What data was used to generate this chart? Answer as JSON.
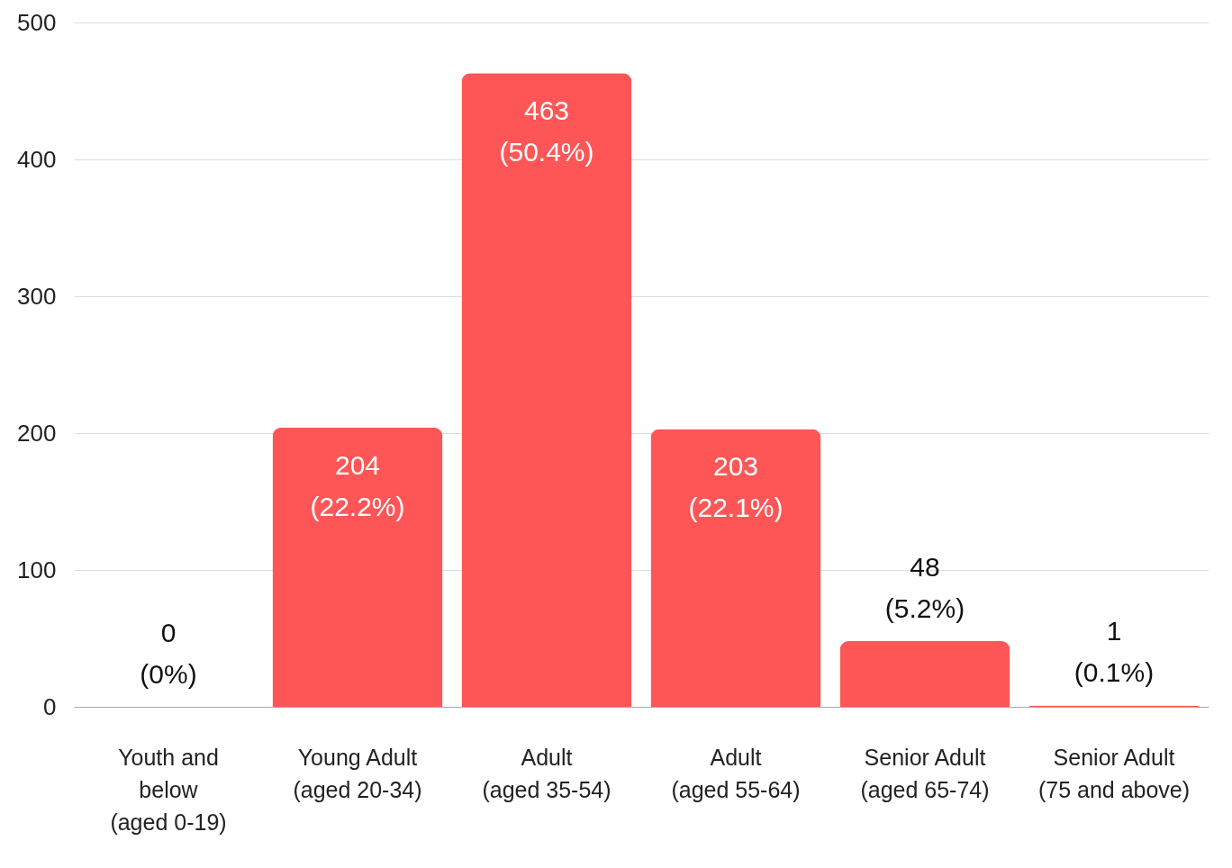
{
  "chart_data": {
    "type": "bar",
    "categories": [
      "Youth and\nbelow\n(aged 0-19)",
      "Young Adult\n(aged 20-34)",
      "Adult\n(aged 35-54)",
      "Adult\n(aged 55-64)",
      "Senior Adult\n(aged 65-74)",
      "Senior Adult\n(75 and above)"
    ],
    "values": [
      0,
      204,
      463,
      203,
      48,
      1
    ],
    "value_labels": [
      "0\n(0%)",
      "204\n(22.2%)",
      "463\n(50.4%)",
      "203\n(22.1%)",
      "48\n(5.2%)",
      "1\n(0.1%)"
    ],
    "color": "#fe5656",
    "ylim": [
      0,
      500
    ],
    "yticks": [
      0,
      100,
      200,
      300,
      400,
      500
    ],
    "grid": "y"
  }
}
